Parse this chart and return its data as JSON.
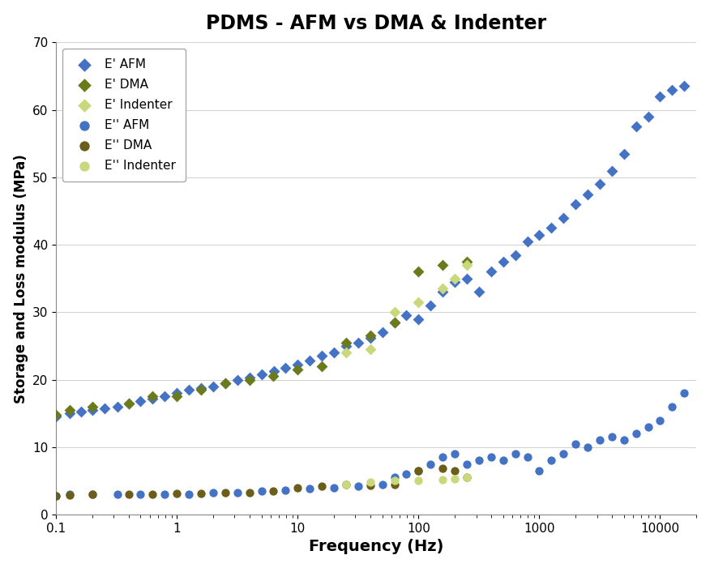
{
  "title": "PDMS - AFM vs DMA & Indenter",
  "xlabel": "Frequency (Hz)",
  "ylabel": "Storage and Loss modulus (MPa)",
  "xlim": [
    0.1,
    20000
  ],
  "ylim": [
    0,
    70
  ],
  "yticks": [
    0,
    10,
    20,
    30,
    40,
    50,
    60,
    70
  ],
  "E_prime_AFM_x": [
    0.1,
    0.13,
    0.16,
    0.2,
    0.25,
    0.32,
    0.4,
    0.5,
    0.63,
    0.79,
    1.0,
    1.26,
    1.58,
    2.0,
    2.51,
    3.16,
    3.98,
    5.01,
    6.31,
    7.94,
    10.0,
    12.6,
    15.8,
    20.0,
    25.1,
    31.6,
    39.8,
    50.1,
    63.1,
    79.4,
    100,
    126,
    158,
    200,
    251,
    316,
    398,
    501,
    631,
    794,
    1000,
    1259,
    1585,
    1995,
    2512,
    3162,
    3981,
    5012,
    6310,
    7943,
    10000,
    12589,
    15849
  ],
  "E_prime_AFM_y": [
    14.5,
    15.0,
    15.3,
    15.5,
    15.8,
    16.0,
    16.5,
    16.8,
    17.2,
    17.5,
    18.0,
    18.5,
    18.8,
    19.0,
    19.5,
    20.0,
    20.3,
    20.8,
    21.3,
    21.8,
    22.2,
    22.8,
    23.5,
    24.0,
    25.0,
    25.5,
    26.2,
    27.0,
    28.5,
    29.5,
    29.0,
    31.0,
    33.0,
    34.5,
    35.0,
    33.0,
    36.0,
    37.5,
    38.5,
    40.5,
    41.5,
    42.5,
    44.0,
    46.0,
    47.5,
    49.0,
    51.0,
    53.5,
    57.5,
    59.0,
    62.0,
    63.0,
    63.5
  ],
  "E_prime_DMA_x": [
    0.1,
    0.13,
    0.2,
    0.4,
    0.63,
    1.0,
    1.58,
    2.5,
    4.0,
    6.3,
    10.0,
    15.8,
    25.1,
    39.8,
    63.1,
    100,
    158,
    251
  ],
  "E_prime_DMA_y": [
    14.8,
    15.5,
    16.0,
    16.5,
    17.5,
    17.5,
    18.5,
    19.5,
    20.0,
    20.5,
    21.5,
    22.0,
    25.5,
    26.5,
    28.5,
    36.0,
    37.0,
    37.5
  ],
  "E_prime_Indenter_x": [
    25.1,
    39.8,
    63.1,
    100,
    158,
    200,
    251
  ],
  "E_prime_Indenter_y": [
    24.0,
    24.5,
    30.0,
    31.5,
    33.5,
    35.0,
    37.0
  ],
  "E_double_prime_AFM_x": [
    0.1,
    0.13,
    0.2,
    0.32,
    0.5,
    0.79,
    1.26,
    2.0,
    3.16,
    5.01,
    7.94,
    12.6,
    20.0,
    31.6,
    50.1,
    63.1,
    79.4,
    100,
    126,
    158,
    200,
    251,
    316,
    398,
    501,
    631,
    794,
    1000,
    1259,
    1585,
    1995,
    2512,
    3162,
    3981,
    5012,
    6310,
    7943,
    10000,
    12589,
    15849
  ],
  "E_double_prime_AFM_y": [
    2.8,
    3.0,
    3.0,
    3.0,
    3.0,
    3.0,
    3.0,
    3.2,
    3.3,
    3.5,
    3.6,
    3.8,
    4.0,
    4.2,
    4.5,
    5.5,
    6.0,
    6.5,
    7.5,
    8.5,
    9.0,
    7.5,
    8.0,
    8.5,
    8.0,
    9.0,
    8.5,
    6.5,
    8.0,
    9.0,
    10.5,
    10.0,
    11.0,
    11.5,
    11.0,
    12.0,
    13.0,
    14.0,
    16.0,
    18.0
  ],
  "E_double_prime_DMA_x": [
    0.1,
    0.13,
    0.2,
    0.4,
    0.63,
    1.0,
    1.58,
    2.5,
    4.0,
    6.3,
    10.0,
    15.8,
    25.1,
    39.8,
    63.1,
    100,
    158,
    200,
    251
  ],
  "E_double_prime_DMA_y": [
    2.8,
    2.9,
    3.0,
    3.0,
    3.0,
    3.1,
    3.1,
    3.2,
    3.3,
    3.5,
    4.0,
    4.2,
    4.5,
    4.3,
    4.5,
    6.5,
    6.8,
    6.5,
    5.5
  ],
  "E_double_prime_Indenter_x": [
    25.1,
    39.8,
    63.1,
    100,
    158,
    200,
    251
  ],
  "E_double_prime_Indenter_y": [
    4.5,
    4.8,
    5.0,
    5.0,
    5.2,
    5.3,
    5.5
  ],
  "color_AFM": "#4472C4",
  "color_DMA_storage": "#6B7A1A",
  "color_Indenter_storage": "#C8D87A",
  "color_DMA_loss": "#6B5E1A",
  "color_Indenter_loss": "#C8D87A",
  "background_color": "#FFFFFF",
  "legend_labels": [
    "E' AFM",
    "E' DMA",
    "E' Indenter",
    "E'' AFM",
    "E'' DMA",
    "E'' Indenter"
  ]
}
